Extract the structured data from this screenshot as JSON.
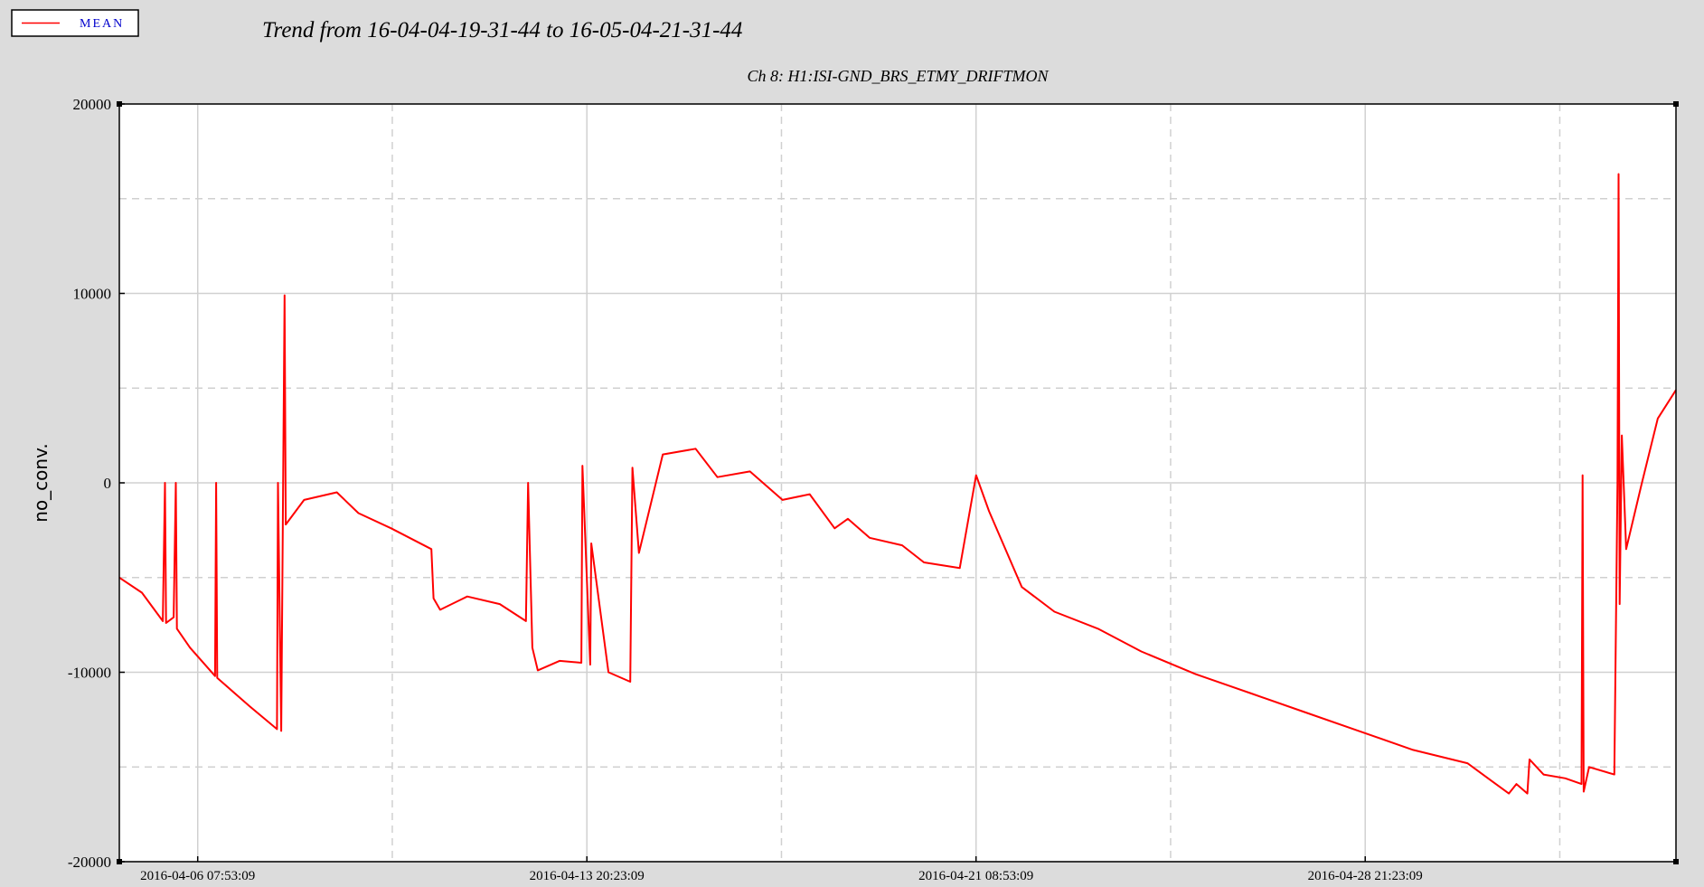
{
  "chart_data": {
    "type": "line",
    "title": "Trend from 16-04-04-19-31-44 to 16-05-04-21-31-44",
    "subtitle": "Ch 8: H1:ISI-GND_BRS_ETMY_DRIFTMON",
    "y_label": "no_conv.",
    "xlim": [
      "2016-04-04 19:31:44",
      "2016-05-04 21:31:44"
    ],
    "xticks": [
      "2016-04-06 07:53:09",
      "2016-04-13 20:23:09",
      "2016-04-21 08:53:09",
      "2016-04-28 21:23:09"
    ],
    "ylim": [
      -20000,
      20000
    ],
    "yticks": [
      -20000,
      -10000,
      0,
      10000,
      20000
    ],
    "grid": true,
    "legend": "upper left",
    "series": [
      {
        "name": "MEAN",
        "color": "#ff0000",
        "x": [
          "2016-04-04 19:31:44",
          "2016-04-05 06:00:00",
          "2016-04-05 15:42:00",
          "2016-04-05 16:42:00",
          "2016-04-05 17:12:00",
          "2016-04-05 20:44:00",
          "2016-04-05 21:44:00",
          "2016-04-05 22:14:00",
          "2016-04-06 04:20:00",
          "2016-04-06 15:56:00",
          "2016-04-06 16:26:00",
          "2016-04-06 16:56:00",
          "2016-04-07 08:02:00",
          "2016-04-07 20:38:00",
          "2016-04-07 21:08:00",
          "2016-04-07 22:38:00",
          "2016-04-08 00:11:00",
          "2016-04-08 00:44:00",
          "2016-04-08 09:14:00",
          "2016-04-09 00:25:00",
          "2016-04-09 10:25:00",
          "2016-04-10 01:37:00",
          "2016-04-10 20:15:00",
          "2016-04-10 21:15:00",
          "2016-04-11 00:19:00",
          "2016-04-11 12:55:00",
          "2016-04-12 04:01:00",
          "2016-04-12 16:07:00",
          "2016-04-12 17:07:00",
          "2016-04-12 19:07:00",
          "2016-04-12 21:37:00",
          "2016-04-13 07:43:00",
          "2016-04-13 17:49:00",
          "2016-04-13 18:19:00",
          "2016-04-13 21:55:00",
          "2016-04-13 22:25:00",
          "2016-04-14 06:25:00",
          "2016-04-14 16:31:00",
          "2016-04-14 17:31:00",
          "2016-04-14 20:31:00",
          "2016-04-15 07:37:00",
          "2016-04-15 22:49:00",
          "2016-04-16 08:55:00",
          "2016-04-17 00:01:00",
          "2016-04-17 15:07:00",
          "2016-04-18 03:43:00",
          "2016-04-18 15:19:00",
          "2016-04-18 21:25:00",
          "2016-04-19 07:31:00",
          "2016-04-19 22:37:00",
          "2016-04-20 08:43:00",
          "2016-04-21 01:19:00",
          "2016-04-21 08:55:00",
          "2016-04-21 14:55:00",
          "2016-04-22 06:07:00",
          "2016-04-22 21:13:00",
          "2016-04-23 17:25:00",
          "2016-04-24 13:31:00",
          "2016-04-25 14:43:00",
          "2016-04-26 16:01:00",
          "2016-04-27 17:13:00",
          "2016-04-28 18:25:00",
          "2016-04-29 19:37:00",
          "2016-04-30 20:49:00",
          "2016-05-01 16:01:00",
          "2016-05-01 19:31:00",
          "2016-05-02 00:37:00",
          "2016-05-02 01:37:00",
          "2016-05-02 08:07:00",
          "2016-05-02 18:13:00",
          "2016-05-03 01:43:00",
          "2016-05-03 02:13:00",
          "2016-05-03 02:43:00",
          "2016-05-03 05:13:00",
          "2016-05-03 16:55:00",
          "2016-05-03 18:25:00",
          "2016-05-03 18:55:00",
          "2016-05-03 19:25:00",
          "2016-05-03 20:25:00",
          "2016-05-03 22:25:00",
          "2016-05-04 05:31:00",
          "2016-05-04 13:07:00",
          "2016-05-04 21:31:44"
        ],
        "values": [
          -5000,
          -5800,
          -7300,
          0,
          -7400,
          -7100,
          0,
          -7700,
          -8700,
          -10200,
          0,
          -10300,
          -11800,
          -13000,
          0,
          -13100,
          9900,
          -2200,
          -900,
          -500,
          -1600,
          -2400,
          -3500,
          -6100,
          -6700,
          -6000,
          -6400,
          -7300,
          0,
          -8700,
          -9900,
          -9400,
          -9500,
          900,
          -9600,
          -3200,
          -10000,
          -10500,
          800,
          -3700,
          1500,
          1800,
          300,
          600,
          -900,
          -600,
          -2400,
          -1900,
          -2900,
          -3300,
          -4200,
          -4500,
          400,
          -1500,
          -5500,
          -6800,
          -7700,
          -8900,
          -10100,
          -11100,
          -12100,
          -13100,
          -14100,
          -14800,
          -16400,
          -15900,
          -16400,
          -14600,
          -15400,
          -15600,
          -15900,
          400,
          -16300,
          -15000,
          -15400,
          0,
          16300,
          -6400,
          2500,
          -3500,
          -100,
          3400,
          4900
        ]
      }
    ]
  }
}
